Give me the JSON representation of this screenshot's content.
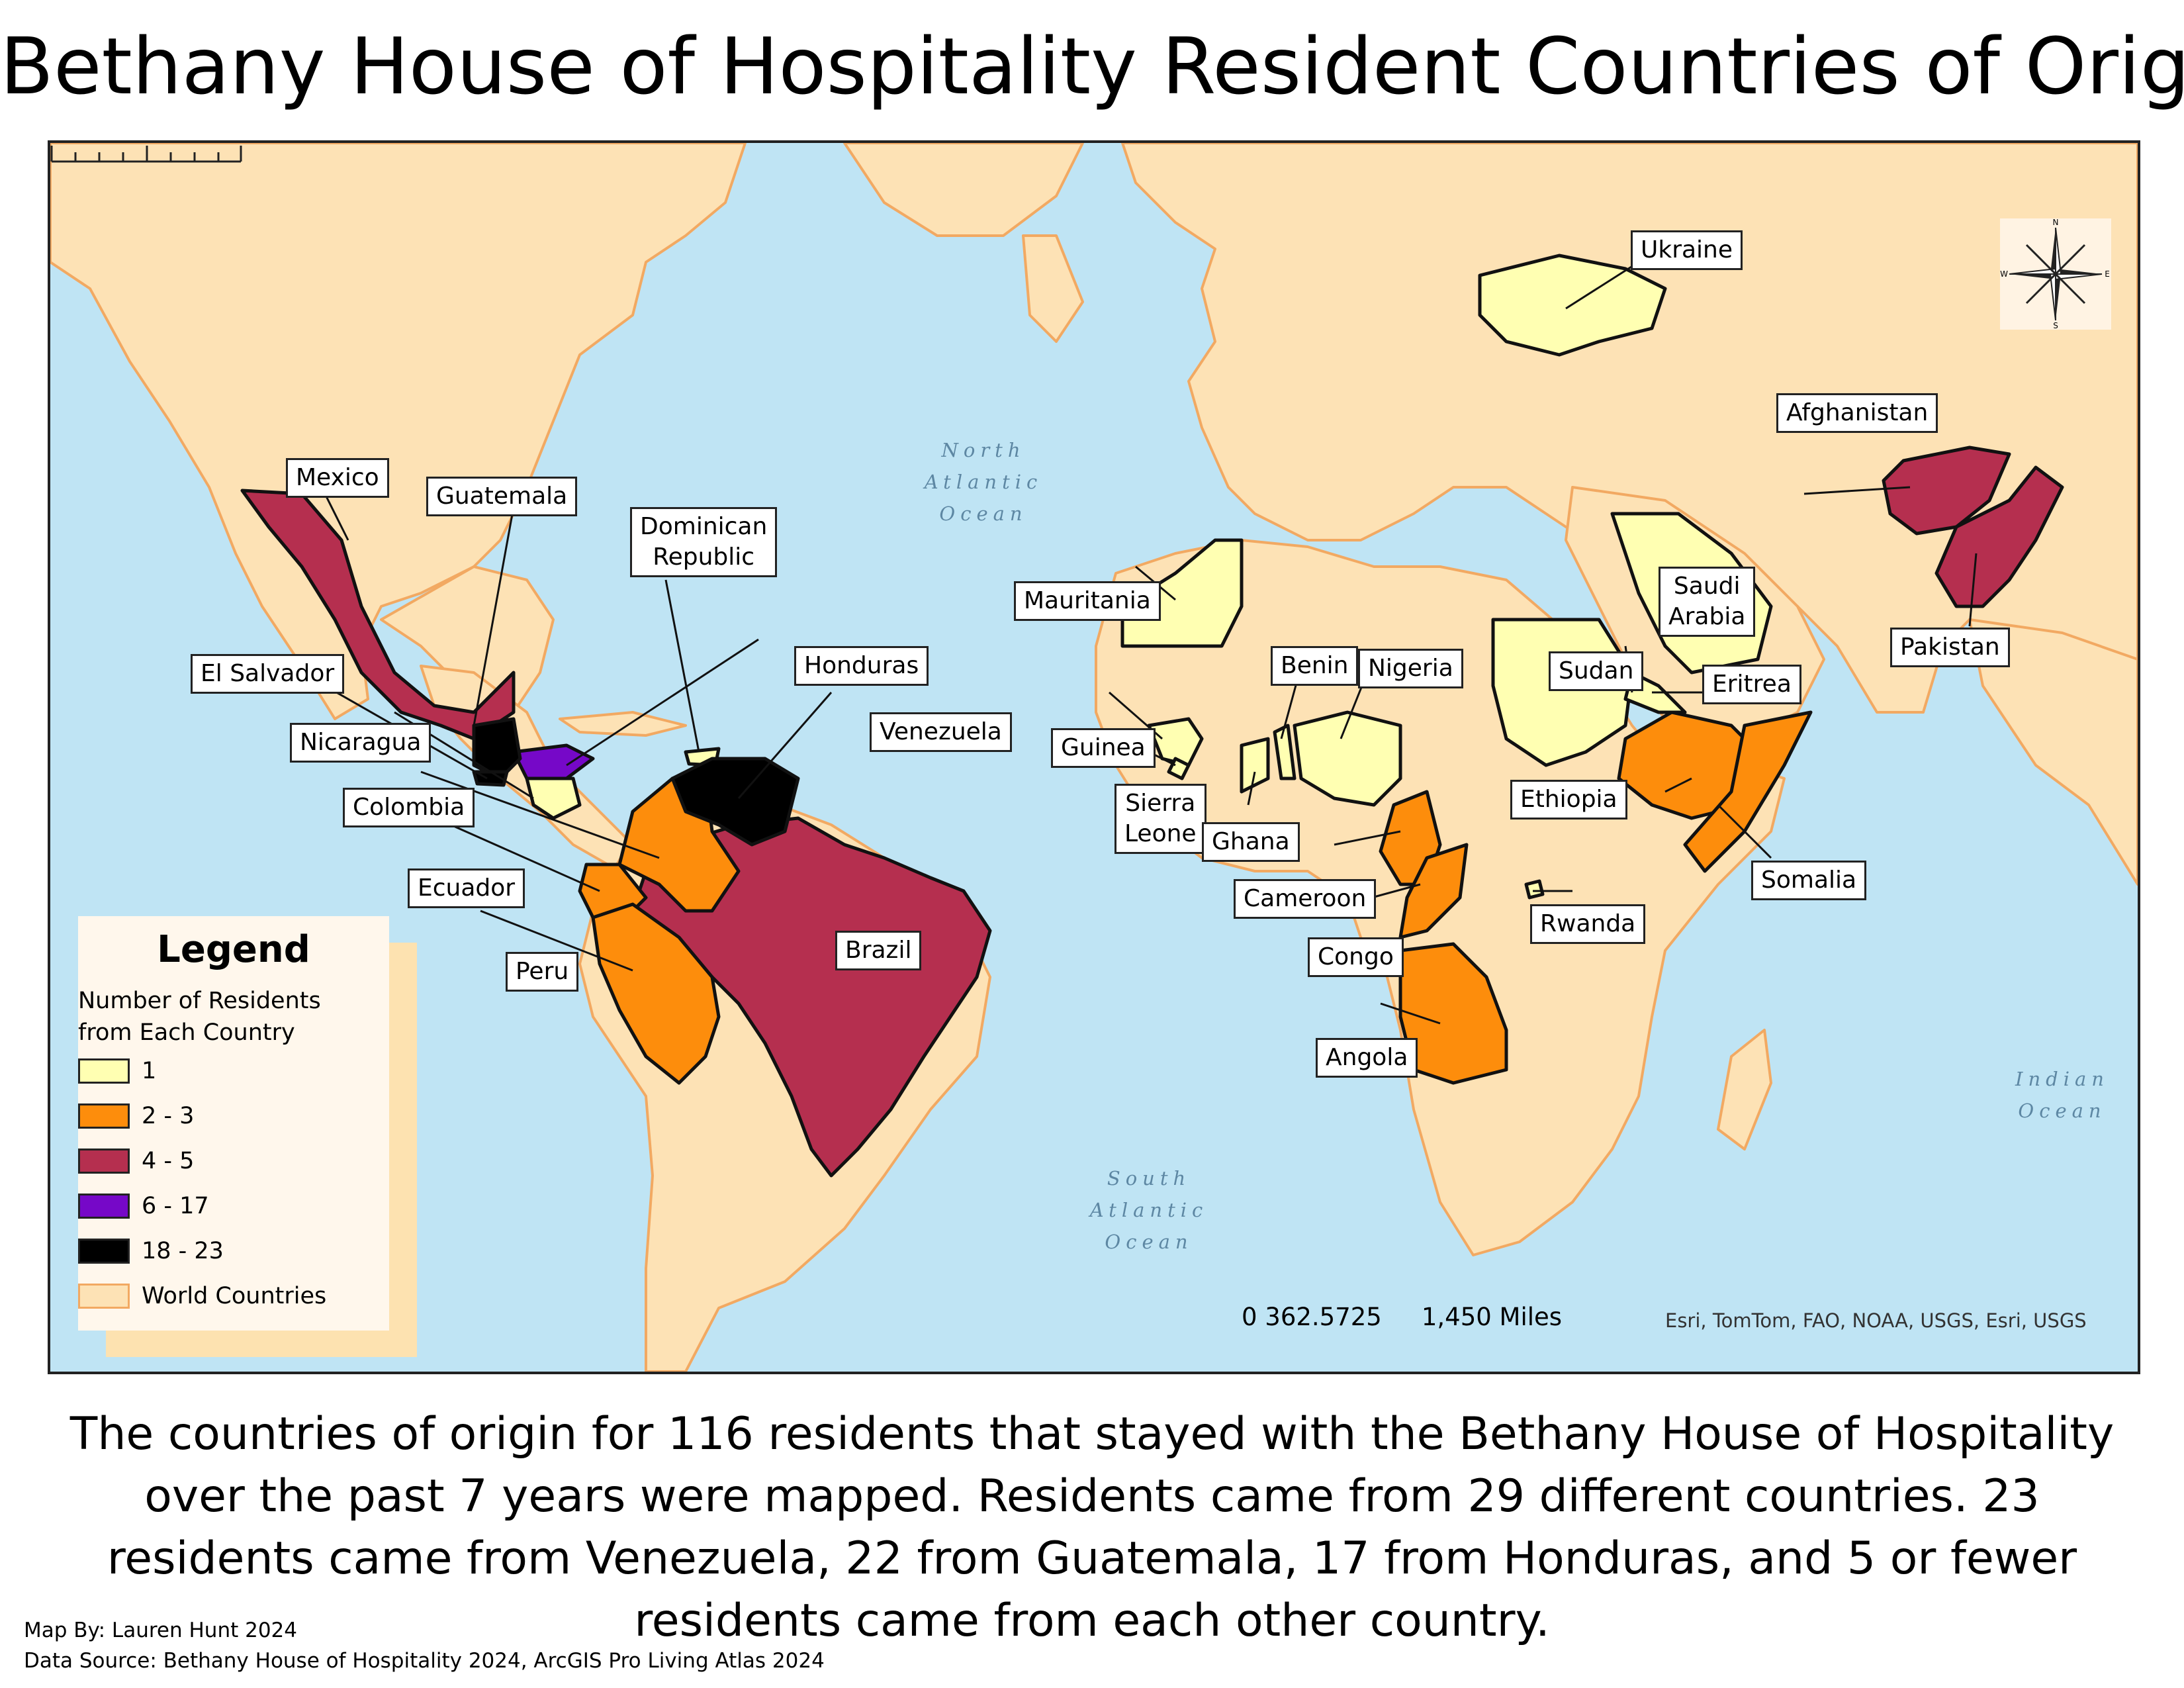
{
  "title": "Bethany House of Hospitality Resident Countries of Origin",
  "colors": {
    "ocean": "#bfe4f4",
    "land": "#fde2b5",
    "border": "#f2a962",
    "class_1": "#ffffb2",
    "class_2_3": "#fd8d0c",
    "class_4_5": "#b52f4f",
    "class_6_17": "#7608c8",
    "class_18_23": "#000000"
  },
  "oceans": {
    "north_atlantic": "North\nAtlantic\nOcean",
    "south_atlantic": "South\nAtlantic\nOcean",
    "indian": "Indian\nOcean"
  },
  "country_labels": {
    "mexico": "Mexico",
    "guatemala": "Guatemala",
    "dominican_republic": "Dominican\nRepublic",
    "el_salvador": "El Salvador",
    "honduras": "Honduras",
    "nicaragua": "Nicaragua",
    "venezuela": "Venezuela",
    "colombia": "Colombia",
    "ecuador": "Ecuador",
    "peru": "Peru",
    "brazil": "Brazil",
    "mauritania": "Mauritania",
    "guinea": "Guinea",
    "sierra_leone": "Sierra\nLeone",
    "ghana": "Ghana",
    "benin": "Benin",
    "nigeria": "Nigeria",
    "cameroon": "Cameroon",
    "congo": "Congo",
    "angola": "Angola",
    "ukraine": "Ukraine",
    "afghanistan": "Afghanistan",
    "pakistan": "Pakistan",
    "saudi_arabia": "Saudi\nArabia",
    "sudan": "Sudan",
    "eritrea": "Eritrea",
    "ethiopia": "Ethiopia",
    "somalia": "Somalia",
    "rwanda": "Rwanda"
  },
  "legend": {
    "title": "Legend",
    "subtitle": "Number of Residents\nfrom Each Country",
    "items": [
      {
        "label": "1",
        "color": "#ffffb2"
      },
      {
        "label": "2 - 3",
        "color": "#fd8d0c"
      },
      {
        "label": "4 - 5",
        "color": "#b52f4f"
      },
      {
        "label": "6 - 17",
        "color": "#7608c8"
      },
      {
        "label": "18 - 23",
        "color": "#000000"
      },
      {
        "label": "World Countries",
        "color": "#fde2b5"
      }
    ]
  },
  "compass": {
    "n": "N",
    "s": "S",
    "e": "E",
    "w": "W"
  },
  "scale": {
    "labels": "0 362.5725",
    "end": "1,450 Miles"
  },
  "attribution": "Esri, TomTom, FAO, NOAA, USGS, Esri, USGS",
  "caption": "The countries of origin for 116 residents that stayed with the Bethany House of Hospitality over the past 7 years were mapped. Residents came from 29 different countries. 23 residents came from Venezuela, 22 from Guatemala, 17 from Honduras, and 5 or fewer residents came from each other country.",
  "credits": {
    "map_by": "Map By: Lauren Hunt 2024",
    "data_source": "Data Source: Bethany House of Hospitality 2024, ArcGIS Pro Living Atlas 2024"
  }
}
